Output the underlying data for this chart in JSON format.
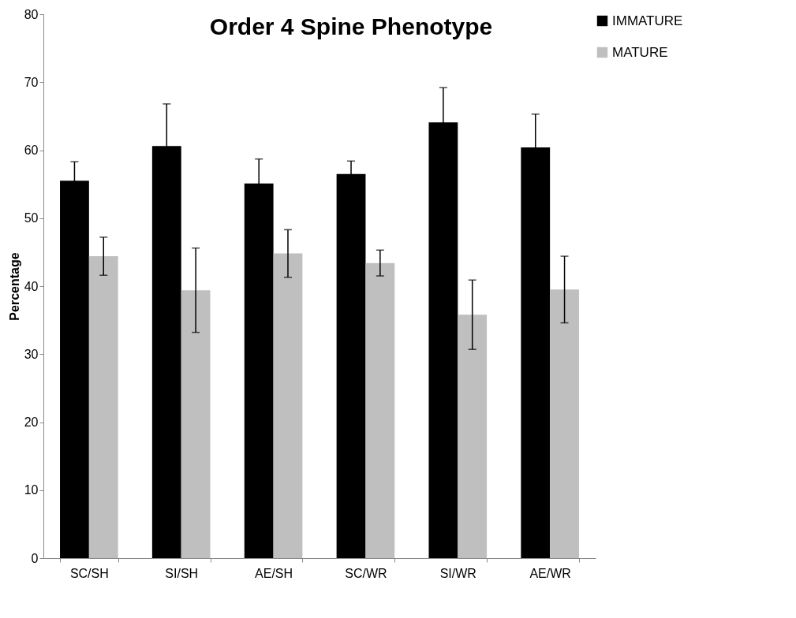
{
  "chart_data": {
    "type": "bar",
    "title": "Order 4 Spine Phenotype",
    "ylabel": "Percentage",
    "categories": [
      "SC/SH",
      "SI/SH",
      "AE/SH",
      "SC/WR",
      "SI/WR",
      "AE/WR"
    ],
    "series": [
      {
        "name": "IMMATURE",
        "color": "#000000",
        "values": [
          55.5,
          60.6,
          55.1,
          56.5,
          64.1,
          60.4
        ],
        "errors": [
          2.8,
          6.2,
          3.6,
          1.9,
          5.1,
          4.9
        ]
      },
      {
        "name": "MATURE",
        "color": "#bfbfbf",
        "values": [
          44.4,
          39.4,
          44.8,
          43.4,
          35.8,
          39.5
        ],
        "errors": [
          2.8,
          6.2,
          3.5,
          1.9,
          5.1,
          4.9
        ]
      }
    ],
    "ylim": [
      0,
      80
    ],
    "yticks": [
      0,
      10,
      20,
      30,
      40,
      50,
      60,
      70,
      80
    ],
    "grid": false,
    "legend": "top right"
  }
}
